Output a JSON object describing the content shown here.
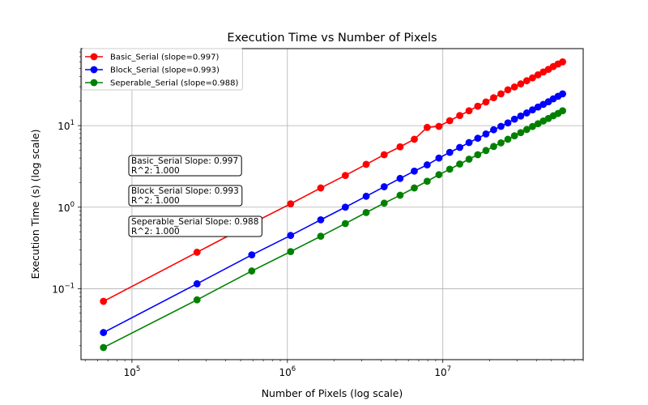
{
  "chart_data": {
    "type": "line",
    "title": "Execution Time vs Number of Pixels",
    "xlabel": "Number of Pixels (log scale)",
    "ylabel": "Execution Time (s) (log scale)",
    "xscale": "log",
    "yscale": "log",
    "xlim": [
      47000,
      80000000
    ],
    "ylim": [
      0.0135,
      88
    ],
    "grid": true,
    "legend_position": "top-left",
    "x_ticks": [
      {
        "value": 100000,
        "base": "10",
        "exp": "5"
      },
      {
        "value": 1000000,
        "base": "10",
        "exp": "6"
      },
      {
        "value": 10000000,
        "base": "10",
        "exp": "7"
      }
    ],
    "y_ticks": [
      {
        "value": 0.1,
        "base": "10",
        "exp": "−1"
      },
      {
        "value": 1,
        "base": "10",
        "exp": "0"
      },
      {
        "value": 10,
        "base": "10",
        "exp": "1"
      }
    ],
    "x": [
      65536,
      262144,
      589824,
      1048576,
      1638400,
      2359296,
      3211264,
      4194304,
      5308416,
      6553600,
      7929856,
      9437184,
      11075584,
      12845056,
      14745600,
      16777216,
      18939904,
      21233664,
      23658496,
      26214400,
      28901376,
      31719424,
      34668544,
      37748736,
      40960000,
      44302336,
      47775744,
      51380224,
      55115776,
      58982400
    ],
    "series": [
      {
        "name": "Basic_Serial (slope=0.997)",
        "color": "#ff0000",
        "values": [
          0.07,
          0.28,
          0.63,
          1.1,
          1.72,
          2.45,
          3.35,
          4.4,
          5.5,
          6.8,
          9.5,
          9.8,
          11.5,
          13.3,
          15.2,
          17.3,
          19.5,
          22.0,
          24.5,
          27.5,
          29.8,
          32.5,
          35.5,
          38.5,
          42.0,
          45.5,
          49.0,
          53.0,
          57.0,
          60.5
        ]
      },
      {
        "name": "Block_Serial (slope=0.993)",
        "color": "#0000ff",
        "values": [
          0.029,
          0.115,
          0.26,
          0.45,
          0.7,
          1.0,
          1.36,
          1.78,
          2.25,
          2.77,
          3.3,
          4.0,
          4.7,
          5.4,
          6.2,
          7.0,
          7.9,
          8.9,
          9.8,
          10.8,
          12.0,
          13.1,
          14.3,
          15.6,
          16.9,
          18.2,
          19.6,
          21.3,
          22.9,
          24.5
        ]
      },
      {
        "name": "Seperable_Serial (slope=0.988)",
        "color": "#008000",
        "values": [
          0.019,
          0.073,
          0.165,
          0.285,
          0.44,
          0.63,
          0.86,
          1.12,
          1.4,
          1.72,
          2.08,
          2.5,
          2.92,
          3.38,
          3.88,
          4.4,
          4.95,
          5.55,
          6.15,
          6.8,
          7.5,
          8.2,
          8.95,
          9.75,
          10.55,
          11.4,
          12.25,
          13.2,
          14.1,
          15.2
        ]
      }
    ],
    "annotations": [
      {
        "line1": "Basic_Serial Slope: 0.997",
        "line2": "R^2: 1.000"
      },
      {
        "line1": "Block_Serial Slope: 0.993",
        "line2": "R^2: 1.000"
      },
      {
        "line1": "Seperable_Serial Slope: 0.988",
        "line2": "R^2: 1.000"
      }
    ]
  }
}
